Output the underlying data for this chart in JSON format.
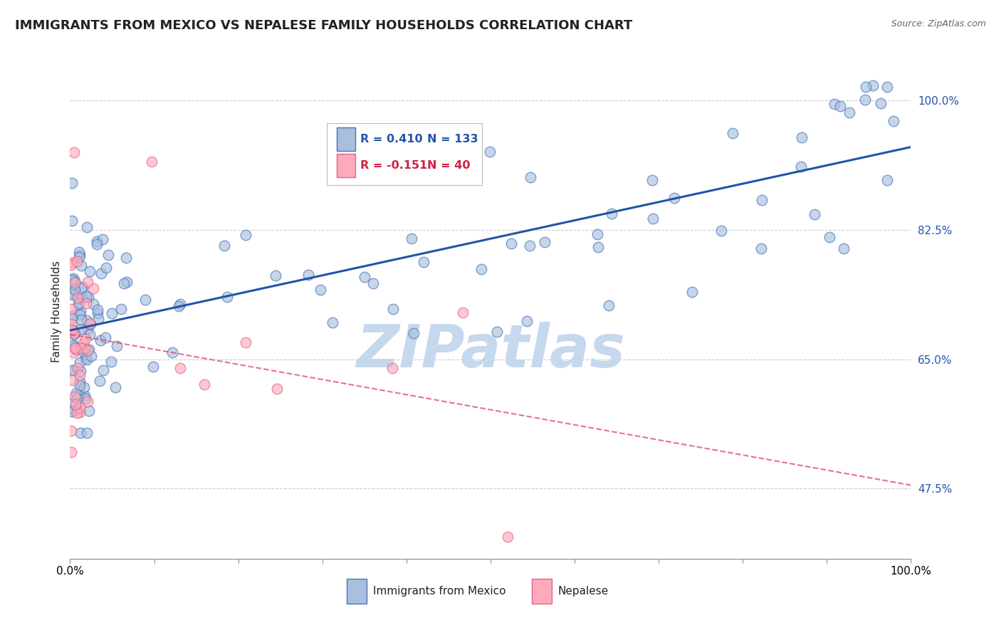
{
  "title": "IMMIGRANTS FROM MEXICO VS NEPALESE FAMILY HOUSEHOLDS CORRELATION CHART",
  "source_text": "Source: ZipAtlas.com",
  "ylabel": "Family Households",
  "xlim": [
    0,
    100
  ],
  "ylim": [
    38,
    105
  ],
  "yticks": [
    47.5,
    65.0,
    82.5,
    100.0
  ],
  "xtick_labels": [
    "0.0%",
    "100.0%"
  ],
  "ytick_labels": [
    "47.5%",
    "65.0%",
    "82.5%",
    "100.0%"
  ],
  "legend_r_mexico": "0.410",
  "legend_n_mexico": "133",
  "legend_r_nepalese": "-0.151",
  "legend_n_nepalese": "40",
  "legend_label_mexico": "Immigrants from Mexico",
  "legend_label_nepalese": "Nepalese",
  "blue_fill": "#AABFDD",
  "blue_edge": "#4477BB",
  "pink_fill": "#FFAABB",
  "pink_edge": "#DD6688",
  "blue_line_color": "#2255AA",
  "pink_line_color": "#DD4466",
  "watermark": "ZIPatlas",
  "watermark_color": "#C5D8EE",
  "grid_color": "#CCCCCC",
  "background_color": "#FFFFFF",
  "title_color": "#222222",
  "source_color": "#666666",
  "tick_label_color_blue": "#2255AA",
  "tick_label_color_black": "#222222"
}
